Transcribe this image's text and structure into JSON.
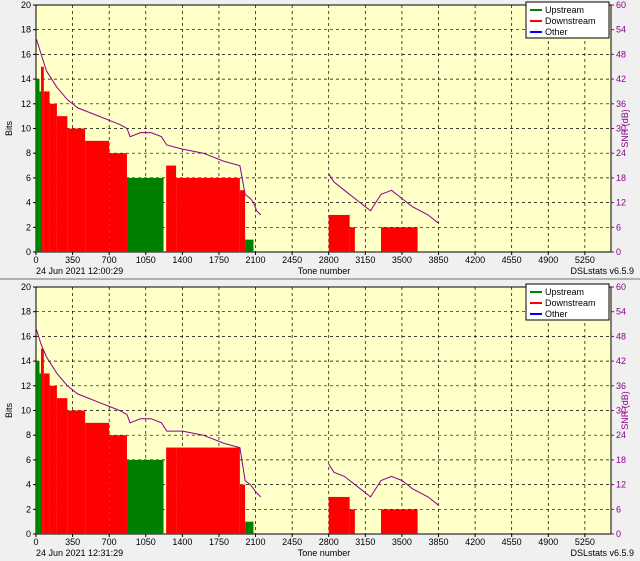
{
  "chart_data": [
    {
      "type": "bar",
      "timestamp": "24 Jun 2021 12:00:29",
      "software": "DSLstats v6.5.9",
      "xlabel": "Tone number",
      "ylabel": "Bits",
      "y2label": "SNR (dB)",
      "xlim": [
        0,
        5500
      ],
      "ylim": [
        0,
        20
      ],
      "y2lim": [
        0,
        60
      ],
      "x_ticks": [
        0,
        350,
        700,
        1050,
        1400,
        1750,
        2100,
        2450,
        2800,
        3150,
        3500,
        3850,
        4200,
        4550,
        4900,
        5250
      ],
      "y_ticks": [
        0,
        2,
        4,
        6,
        8,
        10,
        12,
        14,
        16,
        18,
        20
      ],
      "y2_ticks": [
        0,
        6,
        12,
        18,
        24,
        30,
        36,
        42,
        48,
        54,
        60
      ],
      "grid": true,
      "legend_position": "top-right",
      "legend": [
        "Upstream",
        "Downstream",
        "Other"
      ],
      "colors": {
        "Upstream": "#008000",
        "Downstream": "#ff0000",
        "Other": "#0000ff",
        "SNR": "#8b008b",
        "plot_bg": "#ffffc8"
      },
      "series": [
        {
          "name": "Upstream",
          "segments": [
            [
              0,
              33,
              14
            ],
            [
              33,
              48,
              13
            ],
            [
              870,
              1220,
              6
            ],
            [
              2000,
              2080,
              1
            ]
          ]
        },
        {
          "name": "Downstream",
          "segments": [
            [
              48,
              75,
              15
            ],
            [
              75,
              130,
              13
            ],
            [
              130,
              200,
              12
            ],
            [
              200,
              300,
              11
            ],
            [
              300,
              470,
              10
            ],
            [
              470,
              700,
              9
            ],
            [
              700,
              870,
              8
            ],
            [
              1245,
              1340,
              7
            ],
            [
              1340,
              1950,
              6
            ],
            [
              1950,
              2000,
              5
            ],
            [
              2800,
              3000,
              3
            ],
            [
              3000,
              3050,
              2
            ],
            [
              3300,
              3650,
              2
            ]
          ]
        },
        {
          "name": "SNR",
          "x": [
            0,
            50,
            100,
            200,
            300,
            400,
            500,
            600,
            700,
            800,
            870,
            900,
            1000,
            1100,
            1200,
            1250,
            1400,
            1600,
            1800,
            1950,
            2000,
            2050,
            2080,
            2110,
            2150,
            2800,
            2850,
            2950,
            3100,
            3200,
            3300,
            3400,
            3500,
            3600,
            3750,
            3850
          ],
          "y": [
            52,
            48,
            44,
            40,
            37,
            35,
            34,
            33,
            32,
            31,
            30,
            28,
            29,
            29,
            28,
            26,
            25,
            24,
            22,
            21,
            14,
            13,
            12,
            10,
            9,
            19,
            17,
            15,
            12,
            10,
            14,
            15,
            13,
            11,
            9,
            7
          ]
        }
      ]
    },
    {
      "type": "bar",
      "timestamp": "24 Jun 2021 12:31:29",
      "software": "DSLstats v6.5.9",
      "xlabel": "Tone number",
      "ylabel": "Bits",
      "y2label": "SNR (dB)",
      "xlim": [
        0,
        5500
      ],
      "ylim": [
        0,
        20
      ],
      "y2lim": [
        0,
        60
      ],
      "x_ticks": [
        0,
        350,
        700,
        1050,
        1400,
        1750,
        2100,
        2450,
        2800,
        3150,
        3500,
        3850,
        4200,
        4550,
        4900,
        5250
      ],
      "y_ticks": [
        0,
        2,
        4,
        6,
        8,
        10,
        12,
        14,
        16,
        18,
        20
      ],
      "y2_ticks": [
        0,
        6,
        12,
        18,
        24,
        30,
        36,
        42,
        48,
        54,
        60
      ],
      "grid": true,
      "legend_position": "top-right",
      "legend": [
        "Upstream",
        "Downstream",
        "Other"
      ],
      "colors": {
        "Upstream": "#008000",
        "Downstream": "#ff0000",
        "Other": "#0000ff",
        "SNR": "#8b008b",
        "plot_bg": "#ffffc8"
      },
      "series": [
        {
          "name": "Upstream",
          "segments": [
            [
              0,
              33,
              14
            ],
            [
              33,
              48,
              13
            ],
            [
              870,
              1220,
              6
            ],
            [
              2000,
              2080,
              1
            ]
          ]
        },
        {
          "name": "Downstream",
          "segments": [
            [
              48,
              75,
              15
            ],
            [
              75,
              130,
              13
            ],
            [
              130,
              200,
              12
            ],
            [
              200,
              300,
              11
            ],
            [
              300,
              470,
              10
            ],
            [
              470,
              700,
              9
            ],
            [
              700,
              870,
              8
            ],
            [
              1245,
              1340,
              7
            ],
            [
              1340,
              1950,
              7
            ],
            [
              1950,
              2000,
              4
            ],
            [
              2800,
              3000,
              3
            ],
            [
              3000,
              3050,
              2
            ],
            [
              3300,
              3650,
              2
            ]
          ]
        },
        {
          "name": "SNR",
          "x": [
            0,
            50,
            100,
            200,
            300,
            400,
            500,
            600,
            700,
            800,
            870,
            900,
            1000,
            1100,
            1200,
            1250,
            1400,
            1600,
            1800,
            1950,
            2000,
            2050,
            2080,
            2110,
            2150,
            2800,
            2850,
            2950,
            3100,
            3200,
            3300,
            3400,
            3500,
            3600,
            3750,
            3850
          ],
          "y": [
            50,
            46,
            43,
            39,
            36,
            34,
            33,
            32,
            31,
            30,
            29,
            27,
            28,
            28,
            27,
            25,
            25,
            24,
            22,
            21,
            13,
            12,
            11,
            10,
            9,
            17,
            15,
            14,
            11,
            9,
            13,
            14,
            13,
            11,
            9,
            7
          ]
        }
      ]
    }
  ]
}
